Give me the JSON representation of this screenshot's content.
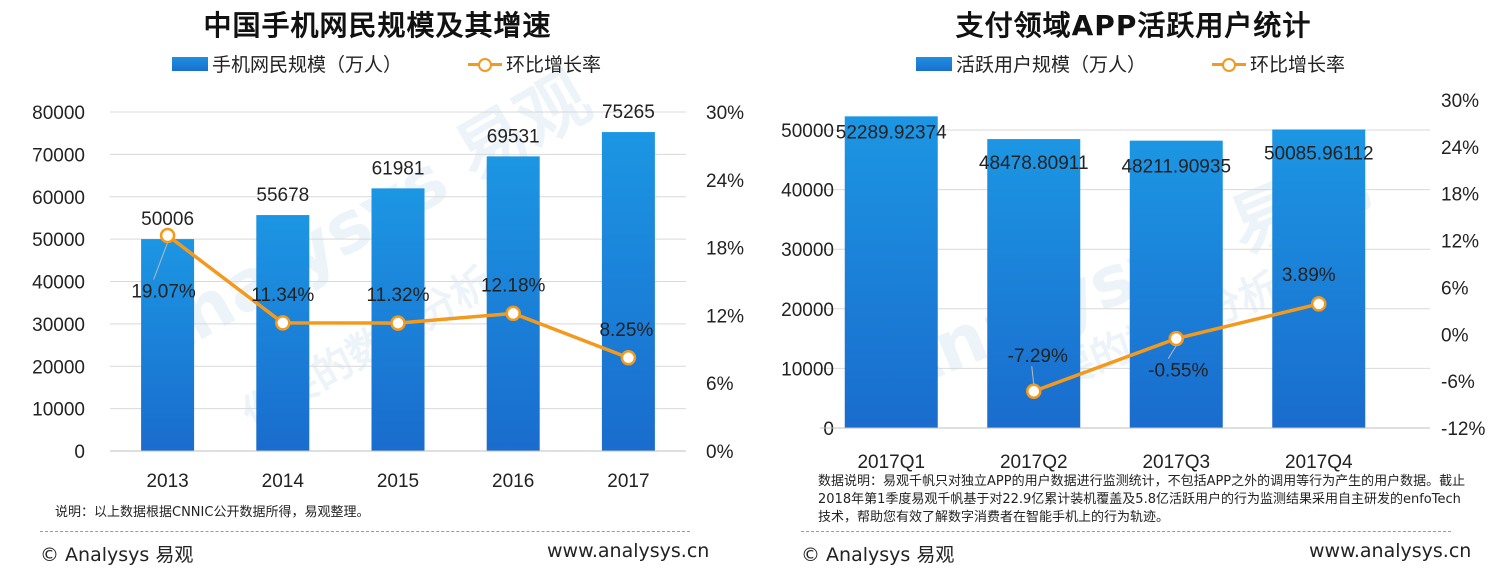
{
  "chart_data": [
    {
      "type": "bar",
      "title": "中国手机网民规模及其增速",
      "legend": {
        "bar": "手机网民规模（万人）",
        "line": "环比增长率"
      },
      "categories": [
        "2013",
        "2014",
        "2015",
        "2016",
        "2017"
      ],
      "series": [
        {
          "name": "手机网民规模（万人）",
          "type": "bar",
          "axis": "left",
          "values": [
            50006,
            55678,
            61981,
            69531,
            75265
          ],
          "labels": [
            "50006",
            "55678",
            "61981",
            "69531",
            "75265"
          ]
        },
        {
          "name": "环比增长率",
          "type": "line",
          "axis": "right",
          "values": [
            19.07,
            11.34,
            11.32,
            12.18,
            8.25
          ],
          "labels": [
            "19.07%",
            "11.34%",
            "11.32%",
            "12.18%",
            "8.25%"
          ]
        }
      ],
      "ylim_left": [
        0,
        80000
      ],
      "yticks_left": [
        "0",
        "10000",
        "20000",
        "30000",
        "40000",
        "50000",
        "60000",
        "70000",
        "80000"
      ],
      "ylim_right": [
        0,
        30
      ],
      "yticks_right": [
        "0%",
        "6%",
        "12%",
        "18%",
        "24%",
        "30%"
      ],
      "grid": true,
      "note": "说明：以上数据根据CNNIC公开数据所得，易观整理。",
      "footer": {
        "copyright": "© Analysys 易观",
        "url": "www.analysys.cn"
      }
    },
    {
      "type": "bar",
      "title": "支付领域APP活跃用户统计",
      "legend": {
        "bar": "活跃用户规模（万人）",
        "line": "环比增长率"
      },
      "categories": [
        "2017Q1",
        "2017Q2",
        "2017Q3",
        "2017Q4"
      ],
      "series": [
        {
          "name": "活跃用户规模（万人）",
          "type": "bar",
          "axis": "left",
          "values": [
            52289.92374,
            48478.80911,
            48211.90935,
            50085.96112
          ],
          "labels": [
            "52289.92374",
            "48478.80911",
            "48211.90935",
            "50085.96112"
          ]
        },
        {
          "name": "环比增长率",
          "type": "line",
          "axis": "right",
          "values": [
            null,
            -7.29,
            -0.55,
            3.89
          ],
          "labels": [
            "",
            "-7.29%",
            "-0.55%",
            "3.89%"
          ]
        }
      ],
      "ylim_left": [
        0,
        50000
      ],
      "yticks_left": [
        "0",
        "10000",
        "20000",
        "30000",
        "40000",
        "50000"
      ],
      "ylim_right": [
        -12,
        30
      ],
      "yticks_right": [
        "-12%",
        "-6%",
        "0%",
        "6%",
        "12%",
        "18%",
        "24%",
        "30%"
      ],
      "grid": true,
      "note": "数据说明：易观千帆只对独立APP的用户数据进行监测统计，不包括APP之外的调用等行为产生的用户数据。截止2018年第1季度易观千帆基于对22.9亿累计装机覆盖及5.8亿活跃用户的行为监测结果采用自主研发的enfoTech技术，帮助您有效了解数字消费者在智能手机上的行为轨迹。",
      "footer": {
        "copyright": "© Analysys 易观",
        "url": "www.analysys.cn"
      }
    }
  ],
  "colors": {
    "bar_top": "#1c96e3",
    "bar_bottom": "#1a6ccd",
    "line": "#f39a1e",
    "grid": "#d9d9d9",
    "axis": "#bfbfbf"
  },
  "watermark": {
    "brand": "Analysys 易观",
    "slogan": "你要的数据分析"
  }
}
